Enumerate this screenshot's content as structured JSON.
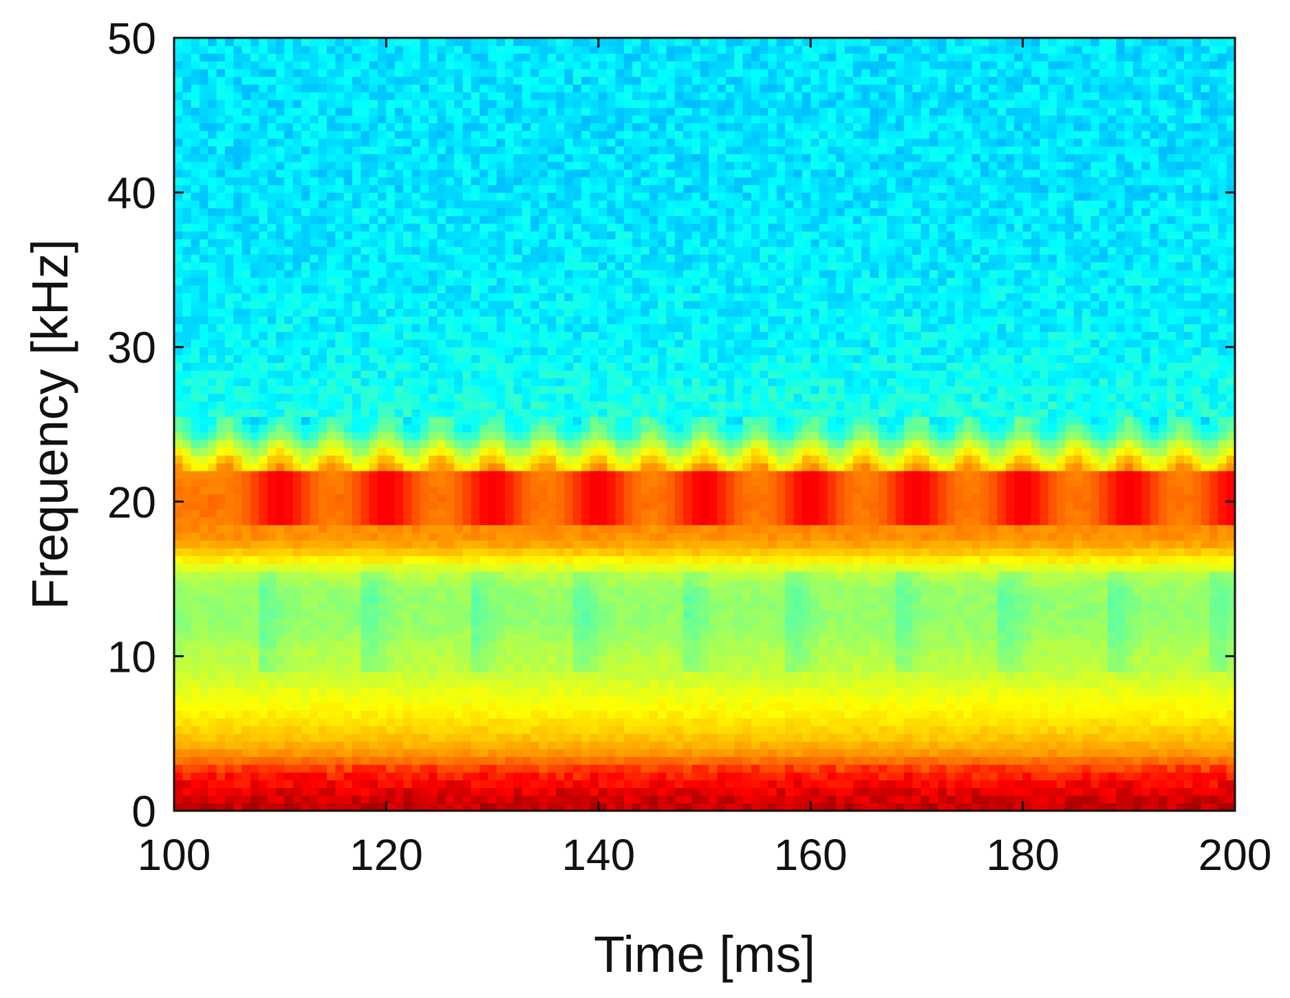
{
  "chart_data": {
    "type": "heatmap",
    "title": "",
    "xlabel": "Time [ms]",
    "ylabel": "Frequency [kHz]",
    "xlim": [
      100,
      200
    ],
    "ylim": [
      0,
      50
    ],
    "xticks": [
      100,
      120,
      140,
      160,
      180,
      200
    ],
    "yticks": [
      0,
      10,
      20,
      30,
      40,
      50
    ],
    "grid": false,
    "colormap": "jet",
    "tick_marks_inside": true,
    "band_profile": [
      {
        "freq_khz": 0.5,
        "level": 0.93
      },
      {
        "freq_khz": 1.5,
        "level": 0.89
      },
      {
        "freq_khz": 2.5,
        "level": 0.84
      },
      {
        "freq_khz": 3.5,
        "level": 0.74
      },
      {
        "freq_khz": 4.5,
        "level": 0.69
      },
      {
        "freq_khz": 5.5,
        "level": 0.66
      },
      {
        "freq_khz": 6.5,
        "level": 0.63
      },
      {
        "freq_khz": 7.5,
        "level": 0.61
      },
      {
        "freq_khz": 8.5,
        "level": 0.58
      },
      {
        "freq_khz": 9.5,
        "level": 0.56
      },
      {
        "freq_khz": 10.5,
        "level": 0.55
      },
      {
        "freq_khz": 11.5,
        "level": 0.53
      },
      {
        "freq_khz": 12.5,
        "level": 0.52
      },
      {
        "freq_khz": 13.5,
        "level": 0.52
      },
      {
        "freq_khz": 14.5,
        "level": 0.53
      },
      {
        "freq_khz": 15.5,
        "level": 0.57
      },
      {
        "freq_khz": 16.5,
        "level": 0.66
      },
      {
        "freq_khz": 17.5,
        "level": 0.73
      },
      {
        "freq_khz": 18.5,
        "level": 0.74
      },
      {
        "freq_khz": 19.5,
        "level": 0.76
      },
      {
        "freq_khz": 20.5,
        "level": 0.76
      },
      {
        "freq_khz": 21.5,
        "level": 0.74
      },
      {
        "freq_khz": 22.5,
        "level": 0.66
      },
      {
        "freq_khz": 23.5,
        "level": 0.56
      },
      {
        "freq_khz": 24.5,
        "level": 0.44
      },
      {
        "freq_khz": 25.5,
        "level": 0.4
      },
      {
        "freq_khz": 27,
        "level": 0.39
      },
      {
        "freq_khz": 30,
        "level": 0.37
      },
      {
        "freq_khz": 35,
        "level": 0.36
      },
      {
        "freq_khz": 40,
        "level": 0.35
      },
      {
        "freq_khz": 45,
        "level": 0.35
      },
      {
        "freq_khz": 50,
        "level": 0.35
      }
    ],
    "periodic_hotspots": {
      "freq_khz": 20,
      "period_ms": 10,
      "centers_ms": [
        110,
        120,
        130,
        140,
        150,
        160,
        170,
        180,
        190,
        200
      ],
      "peak_level": 0.88
    }
  }
}
